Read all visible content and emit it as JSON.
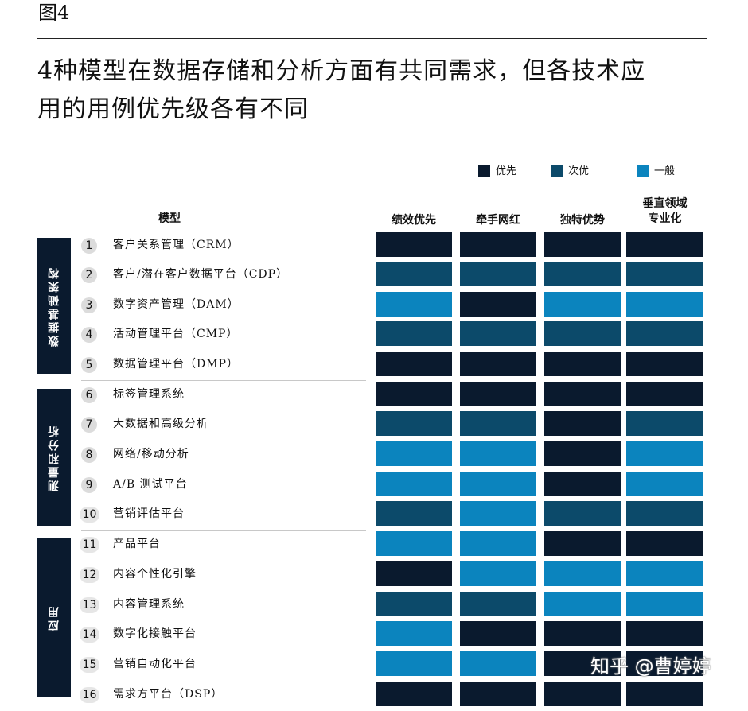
{
  "figure_label": "图4",
  "headline_line1": "4种模型在数据存储和分析方面有共同需求，但各技术应",
  "headline_line2": "用的用例优先级各有不同",
  "colors": {
    "优先": "#0a1a2e",
    "次优": "#0c4a6a",
    "一般": "#0b84be"
  },
  "chart_data": {
    "type": "heatmap",
    "row_header": "模型",
    "columns": [
      {
        "key": "c1",
        "line1": "绩效优先",
        "line2": ""
      },
      {
        "key": "c2",
        "line1": "牵手网红",
        "line2": ""
      },
      {
        "key": "c3",
        "line1": "独特优势",
        "line2": ""
      },
      {
        "key": "c4",
        "line1": "垂直领域",
        "line2": "专业化"
      }
    ],
    "legend": [
      {
        "label": "优先",
        "color": "#0a1a2e"
      },
      {
        "label": "次优",
        "color": "#0c4a6a"
      },
      {
        "label": "一般",
        "color": "#0b84be"
      }
    ],
    "groups": [
      {
        "label": "数据基础架构",
        "rows": [
          1,
          5
        ]
      },
      {
        "label": "测量和分析",
        "rows": [
          6,
          10
        ]
      },
      {
        "label": "应用",
        "rows": [
          11,
          16
        ]
      }
    ],
    "rows": [
      {
        "num": "1",
        "name": "客户关系管理（CRM）",
        "values": [
          "优先",
          "优先",
          "优先",
          "优先"
        ]
      },
      {
        "num": "2",
        "name": "客户/潜在客户数据平台（CDP）",
        "values": [
          "次优",
          "次优",
          "次优",
          "次优"
        ]
      },
      {
        "num": "3",
        "name": "数字资产管理（DAM）",
        "values": [
          "一般",
          "优先",
          "一般",
          "一般"
        ]
      },
      {
        "num": "4",
        "name": "活动管理平台（CMP）",
        "values": [
          "次优",
          "次优",
          "次优",
          "次优"
        ]
      },
      {
        "num": "5",
        "name": "数据管理平台（DMP）",
        "values": [
          "优先",
          "优先",
          "优先",
          "优先"
        ]
      },
      {
        "num": "6",
        "name": "标签管理系统",
        "values": [
          "优先",
          "优先",
          "优先",
          "优先"
        ]
      },
      {
        "num": "7",
        "name": "大数据和高级分析",
        "values": [
          "次优",
          "次优",
          "优先",
          "次优"
        ]
      },
      {
        "num": "8",
        "name": "网络/移动分析",
        "values": [
          "一般",
          "一般",
          "优先",
          "一般"
        ]
      },
      {
        "num": "9",
        "name": "A/B 测试平台",
        "values": [
          "一般",
          "一般",
          "优先",
          "一般"
        ]
      },
      {
        "num": "10",
        "name": "营销评估平台",
        "values": [
          "次优",
          "一般",
          "次优",
          "次优"
        ]
      },
      {
        "num": "11",
        "name": "产品平台",
        "values": [
          "一般",
          "一般",
          "优先",
          "优先"
        ]
      },
      {
        "num": "12",
        "name": "内容个性化引擎",
        "values": [
          "优先",
          "一般",
          "一般",
          "一般"
        ]
      },
      {
        "num": "13",
        "name": "内容管理系统",
        "values": [
          "次优",
          "次优",
          "一般",
          "一般"
        ]
      },
      {
        "num": "14",
        "name": "数字化接触平台",
        "values": [
          "一般",
          "优先",
          "优先",
          "优先"
        ]
      },
      {
        "num": "15",
        "name": "营销自动化平台",
        "values": [
          "一般",
          "一般",
          "优先",
          "优先"
        ]
      },
      {
        "num": "16",
        "name": "需求方平台（DSP）",
        "values": [
          "优先",
          "优先",
          "优先",
          "优先"
        ]
      }
    ]
  },
  "watermark": "知乎 @曹婷婷"
}
